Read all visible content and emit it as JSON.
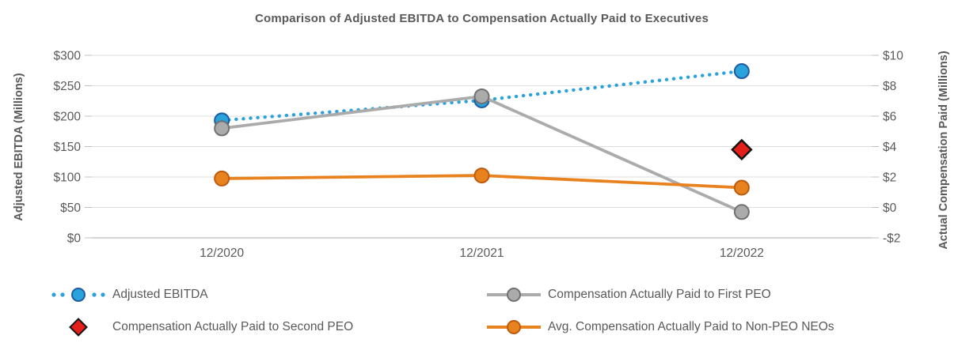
{
  "chart_data": {
    "type": "line",
    "title": "Comparison of Adjusted EBITDA to Compensation Actually Paid to Executives",
    "categories": [
      "12/2020",
      "12/2021",
      "12/2022"
    ],
    "left_axis": {
      "label": "Adjusted EBITDA (Millions)",
      "min": 0,
      "max": 300,
      "step": 50,
      "ticks": [
        "$300",
        "$250",
        "$200",
        "$150",
        "$100",
        "$50",
        "$0"
      ]
    },
    "right_axis": {
      "label": "Actual Compensation Paid (Millions)",
      "min": -2,
      "max": 10,
      "step": 2,
      "ticks": [
        "$10",
        "$8",
        "$6",
        "$4",
        "$2",
        "$0",
        "-$2"
      ]
    },
    "grid": true,
    "legend_position": "bottom",
    "series": [
      {
        "name": "Adjusted EBITDA",
        "axis": "left",
        "line_style": "dotted",
        "marker": "circle",
        "color": "#2AA2DC",
        "marker_border": "#1E5CA0",
        "values": [
          193,
          226,
          274
        ]
      },
      {
        "name": "Compensation Actually Paid to First PEO",
        "axis": "right",
        "line_style": "solid",
        "marker": "circle",
        "color": "#ABABAB",
        "marker_border": "#717171",
        "values": [
          5.2,
          7.3,
          -0.3
        ]
      },
      {
        "name": "Compensation Actually Paid to Second PEO",
        "axis": "right",
        "line_style": "none",
        "marker": "diamond",
        "color": "#E32019",
        "marker_border": "#141414",
        "values": [
          null,
          null,
          3.8
        ]
      },
      {
        "name": "Avg. Compensation Actually Paid to Non-PEO NEOs",
        "axis": "right",
        "line_style": "solid",
        "marker": "circle",
        "color": "#E8821F",
        "marker_border": "#BC5B0E",
        "values": [
          1.9,
          2.1,
          1.3
        ]
      }
    ]
  }
}
